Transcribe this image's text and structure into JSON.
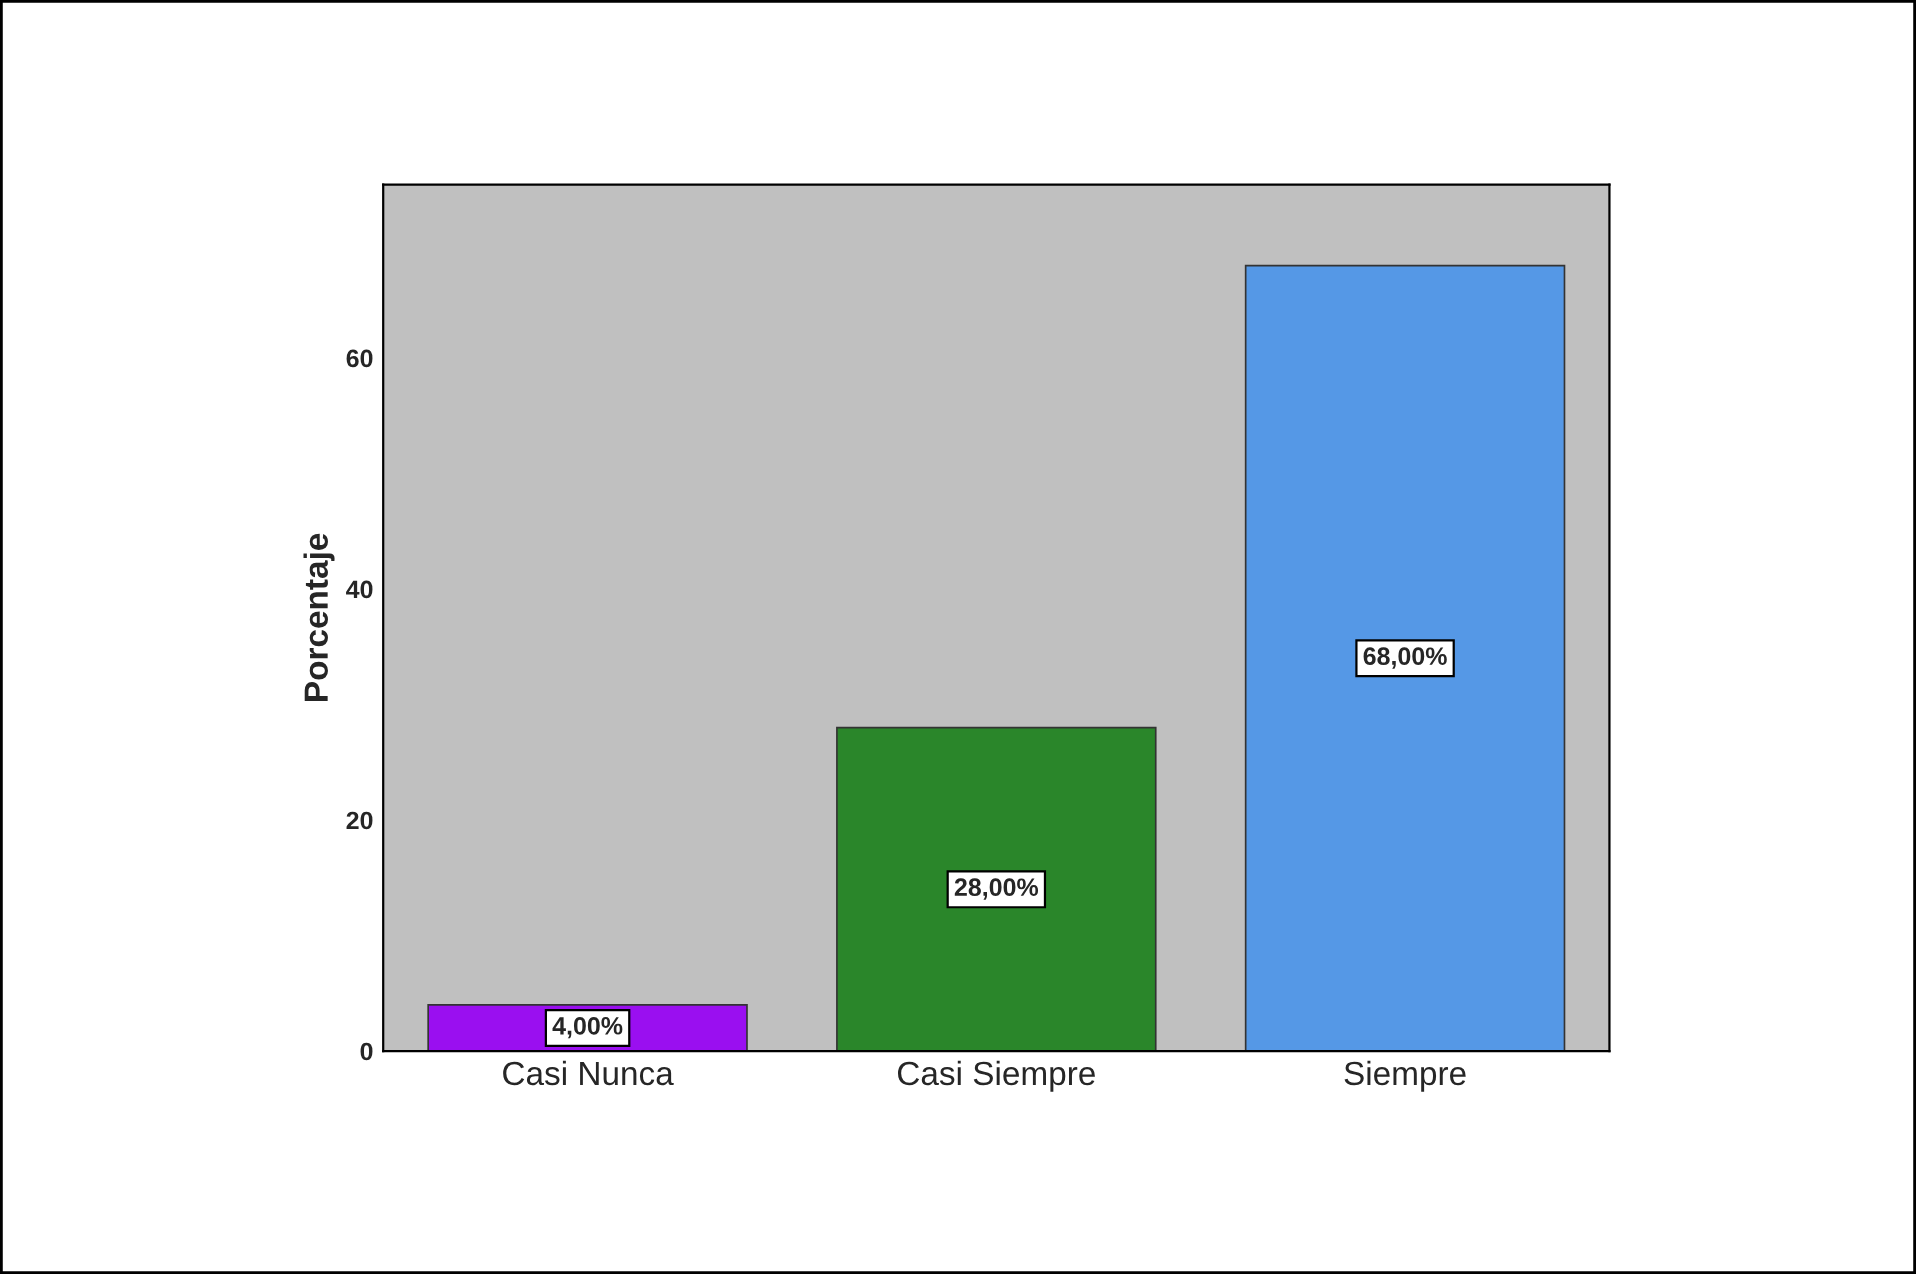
{
  "chart_data": {
    "type": "bar",
    "ylabel": "Porcentaje",
    "categories": [
      "Casi Nunca",
      "Casi Siempre",
      "Siempre"
    ],
    "values": [
      4,
      28,
      68
    ],
    "colors": [
      "#9a0ff0",
      "#2a862a",
      "#5598e6"
    ],
    "value_labels": [
      "4,00%",
      "28,00%",
      "68,00%"
    ],
    "ylim": [
      0,
      75
    ],
    "yticks": [
      0,
      20,
      40,
      60
    ],
    "grid": false
  }
}
